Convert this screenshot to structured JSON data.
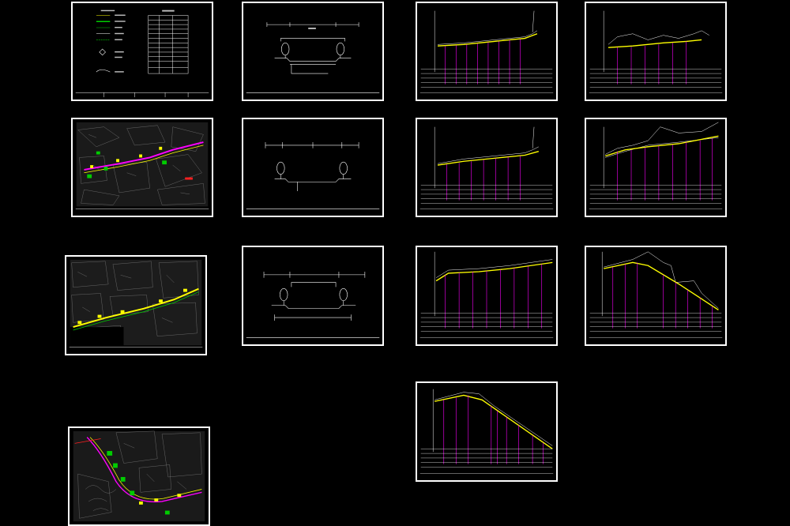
{
  "canvas": {
    "background": "#000000"
  },
  "colors": {
    "frame": "#ffffff",
    "alignment": "#ffff00",
    "station_lines": "#ff00ff",
    "terrain": "#ffffff",
    "map_hatch": "#8a8a8a",
    "green_marker": "#00cc00",
    "red_marker": "#ff2020"
  },
  "sheets": [
    {
      "id": "legend",
      "kind": "legend-table"
    },
    {
      "id": "cross-section-1",
      "kind": "cross-section"
    },
    {
      "id": "cross-section-2",
      "kind": "cross-section"
    },
    {
      "id": "cross-section-3",
      "kind": "cross-section"
    },
    {
      "id": "plan-1",
      "kind": "plan-map"
    },
    {
      "id": "plan-2",
      "kind": "plan-map"
    },
    {
      "id": "plan-3",
      "kind": "plan-map"
    },
    {
      "id": "profile-1",
      "kind": "longitudinal-profile"
    },
    {
      "id": "profile-2",
      "kind": "longitudinal-profile"
    },
    {
      "id": "profile-3",
      "kind": "longitudinal-profile"
    },
    {
      "id": "profile-4",
      "kind": "longitudinal-profile"
    },
    {
      "id": "profile-5",
      "kind": "longitudinal-profile"
    },
    {
      "id": "profile-6",
      "kind": "longitudinal-profile"
    },
    {
      "id": "profile-7",
      "kind": "longitudinal-profile"
    }
  ]
}
